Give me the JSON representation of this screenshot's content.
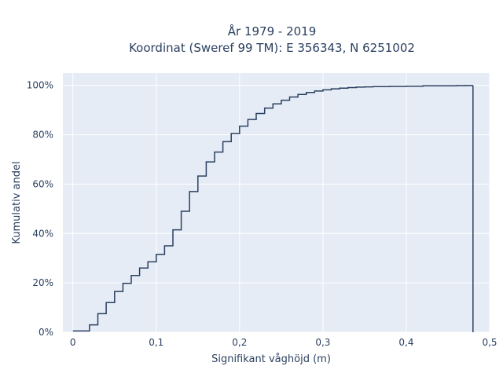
{
  "chart_data": {
    "type": "line",
    "line_shape": "step",
    "title_line1": "År 1979 - 2019",
    "title_line2": "Koordinat (Sweref 99 TM): E 356343, N 6251002",
    "xlabel": "Signifikant våghöjd (m)",
    "ylabel": "Kumulativ andel",
    "xlim": [
      -0.012,
      0.5
    ],
    "ylim": [
      0,
      1.05
    ],
    "x_ticks": [
      0,
      0.1,
      0.2,
      0.3,
      0.4,
      0.5
    ],
    "x_tick_labels": [
      "0",
      "0,1",
      "0,2",
      "0,3",
      "0,4",
      "0,5"
    ],
    "y_ticks": [
      0,
      0.2,
      0.4,
      0.6,
      0.8,
      1.0
    ],
    "y_tick_labels": [
      "0%",
      "20%",
      "40%",
      "60%",
      "80%",
      "100%"
    ],
    "grid": true,
    "colors": {
      "plot_bg": "#e5ecf6",
      "grid": "#ffffff",
      "line": "#2a3f5f"
    },
    "series": [
      {
        "x": [
          0.01,
          0.02,
          0.03,
          0.04,
          0.05,
          0.06,
          0.07,
          0.08,
          0.09,
          0.1,
          0.11,
          0.12,
          0.13,
          0.14,
          0.15,
          0.16,
          0.17,
          0.18,
          0.19,
          0.2,
          0.21,
          0.22,
          0.23,
          0.24,
          0.25,
          0.26,
          0.27,
          0.28,
          0.29,
          0.3,
          0.31,
          0.32,
          0.33,
          0.34,
          0.35,
          0.36,
          0.38,
          0.4,
          0.42,
          0.44,
          0.46,
          0.47,
          0.48
        ],
        "y": [
          0.005,
          0.03,
          0.075,
          0.12,
          0.165,
          0.198,
          0.23,
          0.26,
          0.285,
          0.315,
          0.35,
          0.415,
          0.49,
          0.57,
          0.633,
          0.69,
          0.73,
          0.772,
          0.805,
          0.835,
          0.862,
          0.886,
          0.908,
          0.925,
          0.94,
          0.953,
          0.963,
          0.971,
          0.977,
          0.982,
          0.986,
          0.989,
          0.991,
          0.993,
          0.994,
          0.995,
          0.996,
          0.997,
          0.998,
          0.9985,
          0.999,
          0.9995,
          1.0
        ],
        "end_y": 0
      }
    ]
  }
}
